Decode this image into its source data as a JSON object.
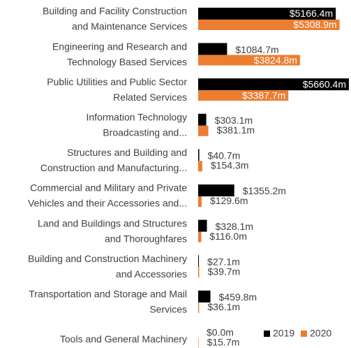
{
  "chart_data": {
    "type": "bar",
    "orientation": "horizontal",
    "categories": [
      [
        "Building and Facility Construction",
        "and Maintenance Services"
      ],
      [
        "Engineering and Research and",
        "Technology Based Services"
      ],
      [
        "Public Utilities and Public Sector",
        "Related Services"
      ],
      [
        "Information Technology",
        "Broadcasting and..."
      ],
      [
        "Structures and Building and",
        "Construction and Manufacturing..."
      ],
      [
        "Commercial and Military and Private",
        "Vehicles and their Accessories and..."
      ],
      [
        "Land and Buildings and Structures",
        "and Thoroughfares"
      ],
      [
        "Building and Construction Machinery",
        "and Accessories"
      ],
      [
        "Transportation and Storage and Mail",
        "Services"
      ],
      [
        "Tools and General Machinery"
      ]
    ],
    "series": [
      {
        "name": "2019",
        "color": "#000000",
        "values": [
          5166.4,
          1084.7,
          5660.4,
          303.1,
          40.7,
          1355.2,
          328.1,
          27.1,
          459.8,
          0.0
        ],
        "value_labels": [
          "$5166.4m",
          "$1084.7m",
          "$5660.4m",
          "$303.1m",
          "$40.7m",
          "$1355.2m",
          "$328.1m",
          "$27.1m",
          "$459.8m",
          "$0.0m"
        ]
      },
      {
        "name": "2020",
        "color": "#ed7d31",
        "values": [
          5308.9,
          3824.8,
          3387.7,
          381.1,
          154.3,
          129.6,
          116.0,
          39.7,
          36.1,
          15.7
        ],
        "value_labels": [
          "$5308.9m",
          "$3824.8m",
          "$3387.7m",
          "$381.1m",
          "$154.3m",
          "$129.6m",
          "$116.0m",
          "$39.7m",
          "$36.1m",
          "$15.7m"
        ]
      }
    ],
    "legend": "bottom-right"
  }
}
